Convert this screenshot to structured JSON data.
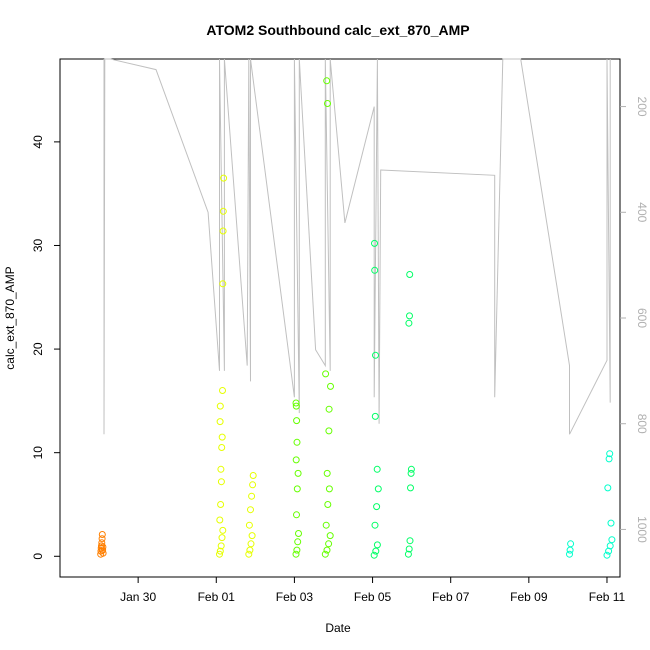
{
  "chart_data": {
    "type": "scatter",
    "title": "ATOM2 Southbound calc_ext_870_AMP",
    "xlabel": "Date",
    "ylabel": "calc_ext_870_AMP",
    "x_unit": "days",
    "xlim": [
      "2019-01-28",
      "2019-02-11T08:00"
    ],
    "ylim": [
      -2,
      48
    ],
    "y2lim": [
      1090,
      110
    ],
    "x_ticks": [
      {
        "value": "2019-01-30",
        "label": "Jan 30"
      },
      {
        "value": "2019-02-01",
        "label": "Feb 01"
      },
      {
        "value": "2019-02-03",
        "label": "Feb 03"
      },
      {
        "value": "2019-02-05",
        "label": "Feb 05"
      },
      {
        "value": "2019-02-07",
        "label": "Feb 07"
      },
      {
        "value": "2019-02-09",
        "label": "Feb 09"
      },
      {
        "value": "2019-02-11",
        "label": "Feb 11"
      }
    ],
    "y_ticks": [
      0,
      10,
      20,
      30,
      40
    ],
    "y2_ticks": [
      200,
      400,
      600,
      800,
      1000
    ],
    "colors": {
      "axis": "#000000",
      "altitude_line": "#c0c0c0",
      "right_axis": "#b0b0b0"
    },
    "point_colors": [
      "#ff7f00",
      "#e6ff00",
      "#66ff00",
      "#00ff66",
      "#00ffcc"
    ],
    "series": [
      {
        "type": "scatter",
        "points": [
          [
            "2019-01-29T01:00",
            0.2,
            0
          ],
          [
            "2019-01-29T01:10",
            0.5,
            0
          ],
          [
            "2019-01-29T01:20",
            0.8,
            0
          ],
          [
            "2019-01-29T01:30",
            1.0,
            0
          ],
          [
            "2019-01-29T01:40",
            1.3,
            0
          ],
          [
            "2019-01-29T01:50",
            1.7,
            0
          ],
          [
            "2019-01-29T02:00",
            2.1,
            0
          ],
          [
            "2019-01-29T02:10",
            0.6,
            0
          ],
          [
            "2019-01-29T02:20",
            0.9,
            0
          ],
          [
            "2019-01-29T02:30",
            0.3,
            0
          ],
          [
            "2019-02-01T02:00",
            0.2,
            1
          ],
          [
            "2019-02-01T02:30",
            0.5,
            1
          ],
          [
            "2019-02-01T03:00",
            1.0,
            1
          ],
          [
            "2019-02-01T03:30",
            1.8,
            1
          ],
          [
            "2019-02-01T04:00",
            2.5,
            1
          ],
          [
            "2019-02-01T02:10",
            3.5,
            1
          ],
          [
            "2019-02-01T02:40",
            5.0,
            1
          ],
          [
            "2019-02-01T03:10",
            7.2,
            1
          ],
          [
            "2019-02-01T02:50",
            8.4,
            1
          ],
          [
            "2019-02-01T03:20",
            10.5,
            1
          ],
          [
            "2019-02-01T03:40",
            11.5,
            1
          ],
          [
            "2019-02-01T02:20",
            13.0,
            1
          ],
          [
            "2019-02-01T02:30",
            14.5,
            1
          ],
          [
            "2019-02-01T03:50",
            16.0,
            1
          ],
          [
            "2019-02-01T04:00",
            26.3,
            1
          ],
          [
            "2019-02-01T04:10",
            31.4,
            1
          ],
          [
            "2019-02-01T04:20",
            33.3,
            1
          ],
          [
            "2019-02-01T04:30",
            36.5,
            1
          ],
          [
            "2019-02-01T20:00",
            0.2,
            1
          ],
          [
            "2019-02-01T20:40",
            0.6,
            1
          ],
          [
            "2019-02-01T21:20",
            1.2,
            1
          ],
          [
            "2019-02-01T22:00",
            2.0,
            1
          ],
          [
            "2019-02-01T20:20",
            3.0,
            1
          ],
          [
            "2019-02-01T21:00",
            4.5,
            1
          ],
          [
            "2019-02-01T21:40",
            5.8,
            1
          ],
          [
            "2019-02-01T22:20",
            6.9,
            1
          ],
          [
            "2019-02-01T22:40",
            7.8,
            1
          ],
          [
            "2019-02-03T01:00",
            0.2,
            2
          ],
          [
            "2019-02-03T01:30",
            0.6,
            2
          ],
          [
            "2019-02-03T02:00",
            1.4,
            2
          ],
          [
            "2019-02-03T02:30",
            2.2,
            2
          ],
          [
            "2019-02-03T01:15",
            4.0,
            2
          ],
          [
            "2019-02-03T01:45",
            6.5,
            2
          ],
          [
            "2019-02-03T02:15",
            8.0,
            2
          ],
          [
            "2019-02-03T01:05",
            9.3,
            2
          ],
          [
            "2019-02-03T01:35",
            11.0,
            2
          ],
          [
            "2019-02-03T01:20",
            13.1,
            2
          ],
          [
            "2019-02-03T01:10",
            14.5,
            2
          ],
          [
            "2019-02-03T01:00",
            14.8,
            2
          ],
          [
            "2019-02-03T19:00",
            0.2,
            2
          ],
          [
            "2019-02-03T20:00",
            0.6,
            2
          ],
          [
            "2019-02-03T21:00",
            1.2,
            2
          ],
          [
            "2019-02-03T22:00",
            2.0,
            2
          ],
          [
            "2019-02-03T19:30",
            3.0,
            2
          ],
          [
            "2019-02-03T20:30",
            5.0,
            2
          ],
          [
            "2019-02-03T21:30",
            6.5,
            2
          ],
          [
            "2019-02-03T20:10",
            8.0,
            2
          ],
          [
            "2019-02-03T21:10",
            12.1,
            2
          ],
          [
            "2019-02-03T21:20",
            14.2,
            2
          ],
          [
            "2019-02-03T22:10",
            16.4,
            2
          ],
          [
            "2019-02-03T19:10",
            17.6,
            2
          ],
          [
            "2019-02-03T20:20",
            43.7,
            2
          ],
          [
            "2019-02-03T19:50",
            45.9,
            2
          ],
          [
            "2019-02-05T01:00",
            0.1,
            3
          ],
          [
            "2019-02-05T02:00",
            0.5,
            3
          ],
          [
            "2019-02-05T03:00",
            1.1,
            3
          ],
          [
            "2019-02-05T01:30",
            3.0,
            3
          ],
          [
            "2019-02-05T02:30",
            4.8,
            3
          ],
          [
            "2019-02-05T03:30",
            6.5,
            3
          ],
          [
            "2019-02-05T02:50",
            8.4,
            3
          ],
          [
            "2019-02-05T01:40",
            13.5,
            3
          ],
          [
            "2019-02-05T01:50",
            19.4,
            3
          ],
          [
            "2019-02-05T01:20",
            27.6,
            3
          ],
          [
            "2019-02-05T01:10",
            30.2,
            3
          ],
          [
            "2019-02-05T22:00",
            0.2,
            3
          ],
          [
            "2019-02-05T22:30",
            0.7,
            3
          ],
          [
            "2019-02-05T23:00",
            1.5,
            3
          ],
          [
            "2019-02-05T23:20",
            6.6,
            3
          ],
          [
            "2019-02-05T23:40",
            8.0,
            3
          ],
          [
            "2019-02-05T23:50",
            8.4,
            3
          ],
          [
            "2019-02-05T22:20",
            22.5,
            3
          ],
          [
            "2019-02-05T22:40",
            23.2,
            3
          ],
          [
            "2019-02-05T22:50",
            27.2,
            3
          ],
          [
            "2019-02-10T01:00",
            0.2,
            4
          ],
          [
            "2019-02-10T01:20",
            0.6,
            4
          ],
          [
            "2019-02-10T01:40",
            1.2,
            4
          ],
          [
            "2019-02-11T00:00",
            0.1,
            4
          ],
          [
            "2019-02-11T01:00",
            0.5,
            4
          ],
          [
            "2019-02-11T02:00",
            1.0,
            4
          ],
          [
            "2019-02-11T03:00",
            1.6,
            4
          ],
          [
            "2019-02-11T02:30",
            3.2,
            4
          ],
          [
            "2019-02-11T00:30",
            6.6,
            4
          ],
          [
            "2019-02-11T01:20",
            9.4,
            4
          ],
          [
            "2019-02-11T01:40",
            9.9,
            4
          ]
        ]
      },
      {
        "type": "line",
        "axis": "right",
        "points": [
          [
            "2019-01-29T03:00",
            110
          ],
          [
            "2019-01-29T03:00",
            820
          ],
          [
            "2019-01-29T03:30",
            110
          ],
          [
            "2019-01-29T07:00",
            110
          ],
          [
            "2019-01-30T11:00",
            130
          ],
          [
            "2019-01-31T19:00",
            400
          ],
          [
            "2019-02-01T02:00",
            700
          ],
          [
            "2019-02-01T02:00",
            110
          ],
          [
            "2019-02-01T05:00",
            700
          ],
          [
            "2019-02-01T05:00",
            110
          ],
          [
            "2019-02-01T19:00",
            690
          ],
          [
            "2019-02-01T20:00",
            110
          ],
          [
            "2019-02-01T21:00",
            720
          ],
          [
            "2019-02-01T21:00",
            110
          ],
          [
            "2019-02-03T00:00",
            750
          ],
          [
            "2019-02-03T00:00",
            110
          ],
          [
            "2019-02-03T03:00",
            780
          ],
          [
            "2019-02-03T03:00",
            110
          ],
          [
            "2019-02-03T13:00",
            660
          ],
          [
            "2019-02-03T19:00",
            690
          ],
          [
            "2019-02-03T19:00",
            110
          ],
          [
            "2019-02-03T22:00",
            700
          ],
          [
            "2019-02-03T22:00",
            110
          ],
          [
            "2019-02-04T07:00",
            420
          ],
          [
            "2019-02-05T01:00",
            200
          ],
          [
            "2019-02-05T01:00",
            750
          ],
          [
            "2019-02-05T03:00",
            110
          ],
          [
            "2019-02-05T04:00",
            800
          ],
          [
            "2019-02-05T05:00",
            320
          ],
          [
            "2019-02-08T03:00",
            330
          ],
          [
            "2019-02-08T03:00",
            750
          ],
          [
            "2019-02-08T08:00",
            110
          ],
          [
            "2019-02-08T19:00",
            110
          ],
          [
            "2019-02-10T01:00",
            690
          ],
          [
            "2019-02-10T01:00",
            820
          ],
          [
            "2019-02-11T00:00",
            680
          ],
          [
            "2019-02-11T00:00",
            110
          ],
          [
            "2019-02-11T02:00",
            760
          ],
          [
            "2019-02-11T02:00",
            110
          ]
        ]
      }
    ]
  }
}
